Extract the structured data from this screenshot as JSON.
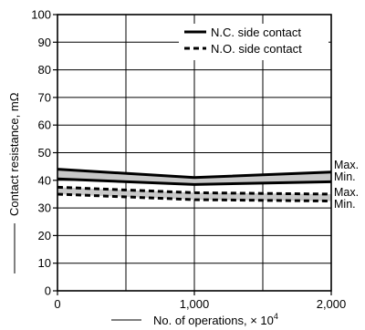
{
  "chart_data": {
    "type": "line",
    "title": "",
    "ylabel": "Contact resistance, mΩ",
    "xlabel": "No. of operations, × 10",
    "xlabel_exponent": "4",
    "x": [
      0,
      1000,
      2000
    ],
    "x_tick_values": [
      0,
      1000,
      2000
    ],
    "x_tick_labels": [
      "0",
      "1,000",
      "2,000"
    ],
    "xlim": [
      0,
      2000
    ],
    "y_tick_values": [
      0,
      10,
      20,
      30,
      40,
      50,
      60,
      70,
      80,
      90,
      100
    ],
    "y_tick_labels": [
      "0",
      "10",
      "20",
      "30",
      "40",
      "50",
      "60",
      "70",
      "80",
      "90",
      "100"
    ],
    "ylim": [
      0,
      100
    ],
    "grid": true,
    "legend_position": "top-right",
    "band_fill_color": "#c8c8c8",
    "series": [
      {
        "name": "N.C. side contact",
        "style": "solid",
        "max": [
          44,
          41,
          43
        ],
        "min": [
          40.5,
          38.5,
          39.5
        ],
        "max_label": "Max.",
        "min_label": "Min."
      },
      {
        "name": "N.O. side contact",
        "style": "dashed",
        "max": [
          37.5,
          35.5,
          35
        ],
        "min": [
          35,
          33,
          32.5
        ],
        "max_label": "Max.",
        "min_label": "Min."
      }
    ]
  }
}
